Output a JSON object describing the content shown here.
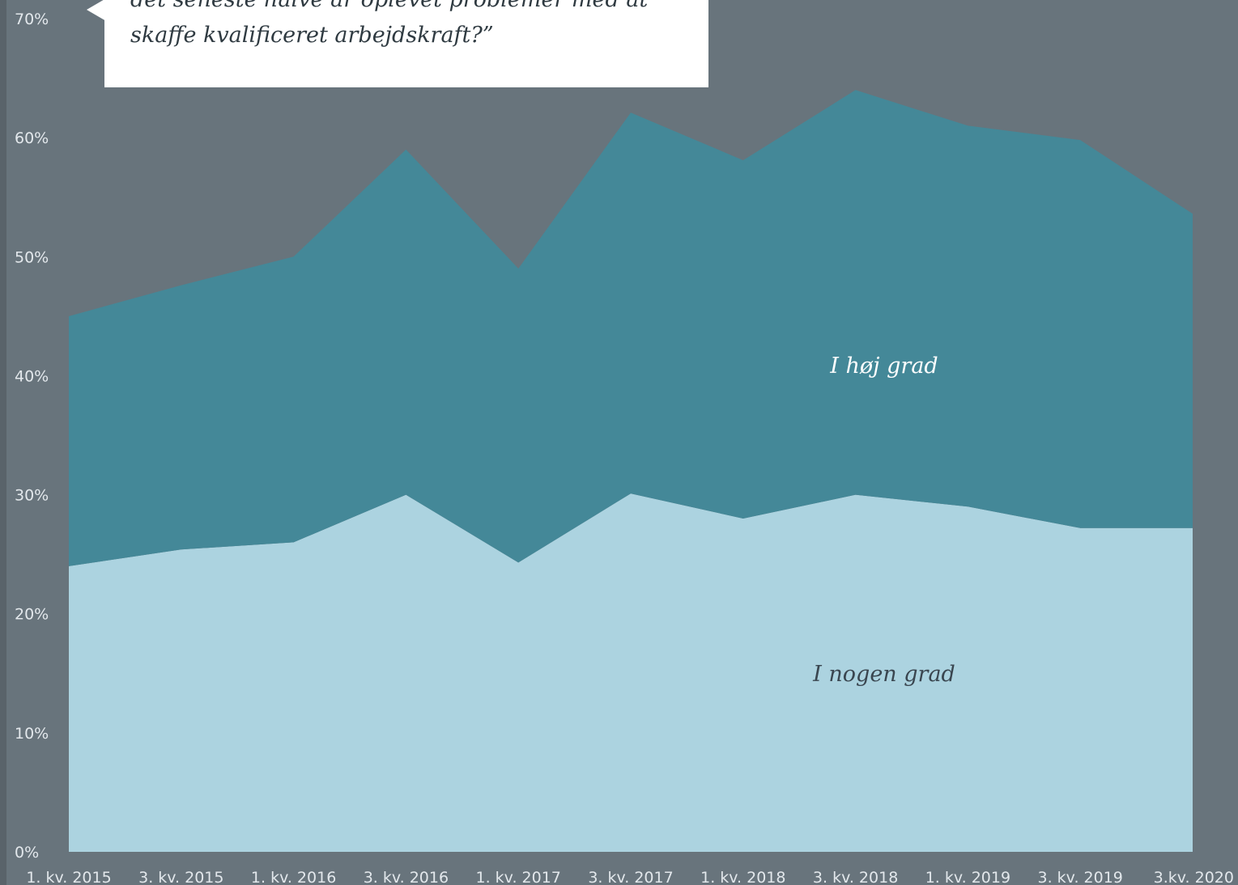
{
  "chart_data": {
    "type": "area",
    "stacked": true,
    "title": "det seneste halve år oplevet problemer med at skaffe kvalificeret arbejdskraft?”",
    "x": [
      "1. kv. 2015",
      "3. kv. 2015",
      "1. kv. 2016",
      "3. kv. 2016",
      "1. kv. 2017",
      "3. kv. 2017",
      "1. kv. 2018",
      "3. kv. 2018",
      "1. kv. 2019",
      "3. kv. 2019",
      "3.kv. 2020"
    ],
    "series": [
      {
        "name": "I nogen grad",
        "values": [
          24.0,
          25.4,
          26.0,
          30.0,
          24.3,
          30.1,
          28.0,
          30.0,
          29.0,
          27.2,
          27.2
        ],
        "color": "#acd3e0"
      },
      {
        "name": "I høj grad",
        "values": [
          21.0,
          22.2,
          24.0,
          29.0,
          24.7,
          32.0,
          30.1,
          34.0,
          32.0,
          32.6,
          26.4
        ],
        "color": "#448898"
      }
    ],
    "yticks": [
      "0%",
      "10%",
      "20%",
      "30%",
      "40%",
      "50%",
      "60%",
      "70%"
    ],
    "ylim": [
      0,
      70
    ],
    "grid": false,
    "legend": "inline labels"
  },
  "colors": {
    "background": "#68747c",
    "label_high": "#ffffff",
    "label_some": "#3a4650"
  }
}
